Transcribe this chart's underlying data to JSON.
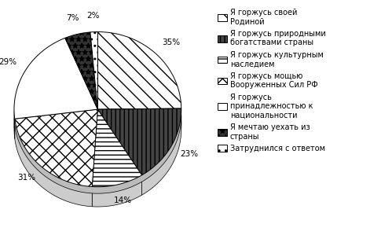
{
  "labels": [
    "Я горжусь своей\nРодиной",
    "Я горжусь природными\nбогатствами страны",
    "Я горжусь культурным\nнаследием",
    "Я горжусь мощью\nВооруженных Сил РФ",
    "Я горжусь\nпринадлежностью к\nнациональности",
    "Я мечтаю уехать из\nстраны",
    "Затруднился с ответом"
  ],
  "values": [
    35,
    23,
    14,
    31,
    29,
    7,
    2
  ],
  "hatch_styles": [
    "\\\\",
    "|||",
    "---",
    "xx",
    "~~~",
    "**",
    ".."
  ],
  "face_colors": [
    "white",
    "#444444",
    "white",
    "white",
    "white",
    "#333333",
    "white"
  ],
  "legend_hatch_styles": [
    "\\\\",
    "|||",
    "---",
    "xx",
    "ZZ",
    "**",
    ".."
  ],
  "legend_face_colors": [
    "white",
    "#444444",
    "white",
    "white",
    "white",
    "#333333",
    "white"
  ],
  "background_color": "white",
  "legend_fontsize": 7.0,
  "autopct_fontsize": 7.5,
  "startangle": 90
}
